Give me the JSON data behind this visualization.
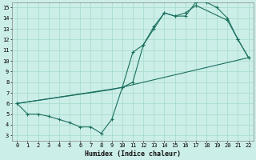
{
  "xlabel": "Humidex (Indice chaleur)",
  "bg_color": "#cceee8",
  "grid_color": "#aaddcc",
  "line_color": "#1a7060",
  "xlim": [
    -0.5,
    22.5
  ],
  "ylim": [
    2.5,
    15.5
  ],
  "xticks": [
    0,
    1,
    2,
    3,
    4,
    5,
    6,
    7,
    8,
    9,
    10,
    11,
    12,
    13,
    14,
    15,
    16,
    17,
    18,
    19,
    20,
    21,
    22
  ],
  "yticks": [
    3,
    4,
    5,
    6,
    7,
    8,
    9,
    10,
    11,
    12,
    13,
    14,
    15
  ],
  "line1_x": [
    0,
    1,
    2,
    3,
    4,
    5,
    6,
    7,
    8,
    9,
    10,
    11,
    12,
    13,
    14,
    15,
    16,
    17,
    18,
    19,
    20,
    21,
    22
  ],
  "line1_y": [
    6,
    5,
    5,
    4.8,
    4.5,
    4.2,
    3.8,
    3.8,
    3.2,
    4.5,
    7.5,
    8.0,
    11.5,
    13.0,
    14.5,
    14.2,
    14.2,
    15.5,
    15.5,
    15.0,
    14.0,
    12.0,
    10.3
  ],
  "line2_x": [
    0,
    10,
    11,
    12,
    13,
    14,
    15,
    16,
    17,
    20,
    21,
    22
  ],
  "line2_y": [
    6,
    7.5,
    10.8,
    11.5,
    13.2,
    14.5,
    14.2,
    14.5,
    15.2,
    13.8,
    12.0,
    10.3
  ],
  "line3_x": [
    0,
    9,
    22
  ],
  "line3_y": [
    6,
    7.3,
    10.3
  ]
}
